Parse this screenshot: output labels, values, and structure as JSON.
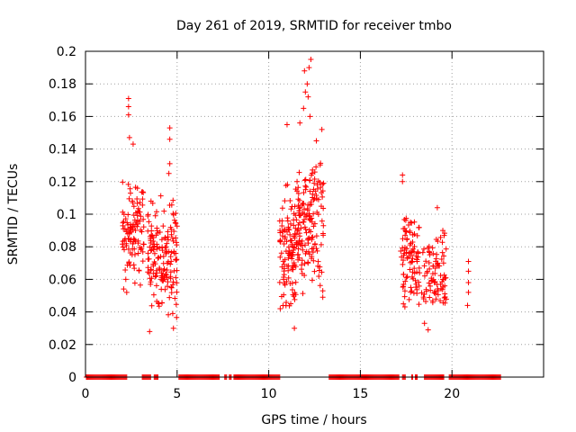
{
  "chart_data": {
    "type": "scatter",
    "title": "Day 261 of 2019, SRMTID for receiver tmbo",
    "xlabel": "GPS time / hours",
    "ylabel": "SRMTID / TECUs",
    "xlim": [
      0,
      25
    ],
    "ylim": [
      0,
      0.2
    ],
    "grid": true,
    "marker": "+",
    "x_ticks": [
      0,
      5,
      10,
      15,
      20
    ],
    "x_tick_labels": [
      "0",
      "5",
      "10",
      "15",
      "20"
    ],
    "y_ticks": [
      0,
      0.02,
      0.04,
      0.06,
      0.08,
      0.1,
      0.12,
      0.14,
      0.16,
      0.18,
      0.2
    ],
    "y_tick_labels": [
      "0",
      "0.02",
      "0.04",
      "0.06",
      "0.08",
      "0.1",
      "0.12",
      "0.14",
      "0.16",
      "0.18",
      "0.2"
    ],
    "series": [
      {
        "name": "SRMTID",
        "color": "#ff0000",
        "clusters": [
          {
            "x_start": 2.0,
            "x_end": 3.2,
            "y_min": 0.05,
            "y_max": 0.13,
            "count": 110,
            "seed": 11
          },
          {
            "x_start": 3.4,
            "x_end": 4.3,
            "y_min": 0.028,
            "y_max": 0.12,
            "count": 90,
            "seed": 12
          },
          {
            "x_start": 4.3,
            "x_end": 5.0,
            "y_min": 0.03,
            "y_max": 0.12,
            "count": 70,
            "seed": 13
          },
          {
            "x_start": 10.6,
            "x_end": 11.6,
            "y_min": 0.03,
            "y_max": 0.13,
            "count": 120,
            "seed": 21
          },
          {
            "x_start": 11.6,
            "x_end": 13.0,
            "y_min": 0.04,
            "y_max": 0.15,
            "count": 150,
            "seed": 22
          },
          {
            "x_start": 17.2,
            "x_end": 18.2,
            "y_min": 0.035,
            "y_max": 0.11,
            "count": 90,
            "seed": 31
          },
          {
            "x_start": 18.2,
            "x_end": 19.7,
            "y_min": 0.03,
            "y_max": 0.1,
            "count": 90,
            "seed": 32
          }
        ],
        "points": [
          {
            "x": 2.35,
            "y": 0.171
          },
          {
            "x": 2.35,
            "y": 0.166
          },
          {
            "x": 2.35,
            "y": 0.161
          },
          {
            "x": 2.4,
            "y": 0.147
          },
          {
            "x": 2.6,
            "y": 0.143
          },
          {
            "x": 2.25,
            "y": 0.052
          },
          {
            "x": 2.2,
            "y": 0.06
          },
          {
            "x": 4.6,
            "y": 0.153
          },
          {
            "x": 4.6,
            "y": 0.146
          },
          {
            "x": 4.6,
            "y": 0.131
          },
          {
            "x": 4.55,
            "y": 0.125
          },
          {
            "x": 3.5,
            "y": 0.028
          },
          {
            "x": 4.8,
            "y": 0.03
          },
          {
            "x": 11.0,
            "y": 0.155
          },
          {
            "x": 12.3,
            "y": 0.195
          },
          {
            "x": 12.2,
            "y": 0.19
          },
          {
            "x": 11.95,
            "y": 0.188
          },
          {
            "x": 12.1,
            "y": 0.18
          },
          {
            "x": 12.0,
            "y": 0.175
          },
          {
            "x": 12.15,
            "y": 0.172
          },
          {
            "x": 11.9,
            "y": 0.165
          },
          {
            "x": 12.25,
            "y": 0.16
          },
          {
            "x": 11.7,
            "y": 0.156
          },
          {
            "x": 12.9,
            "y": 0.152
          },
          {
            "x": 12.6,
            "y": 0.145
          },
          {
            "x": 12.95,
            "y": 0.053
          },
          {
            "x": 12.95,
            "y": 0.049
          },
          {
            "x": 11.4,
            "y": 0.03
          },
          {
            "x": 17.3,
            "y": 0.124
          },
          {
            "x": 17.3,
            "y": 0.12
          },
          {
            "x": 19.2,
            "y": 0.104
          },
          {
            "x": 19.5,
            "y": 0.09
          },
          {
            "x": 18.7,
            "y": 0.029
          },
          {
            "x": 18.5,
            "y": 0.033
          },
          {
            "x": 20.9,
            "y": 0.071
          },
          {
            "x": 20.9,
            "y": 0.065
          },
          {
            "x": 20.9,
            "y": 0.058
          },
          {
            "x": 20.9,
            "y": 0.052
          },
          {
            "x": 20.85,
            "y": 0.044
          }
        ],
        "zero_runs": [
          [
            0.05,
            2.25
          ],
          [
            3.1,
            3.55
          ],
          [
            3.75,
            3.95
          ],
          [
            5.1,
            7.3
          ],
          [
            7.6,
            7.7
          ],
          [
            7.85,
            7.95
          ],
          [
            8.1,
            10.65
          ],
          [
            13.3,
            17.15
          ],
          [
            17.3,
            17.5
          ],
          [
            17.8,
            17.85
          ],
          [
            18.0,
            18.1
          ],
          [
            18.5,
            19.6
          ],
          [
            19.85,
            22.7
          ]
        ]
      }
    ]
  }
}
